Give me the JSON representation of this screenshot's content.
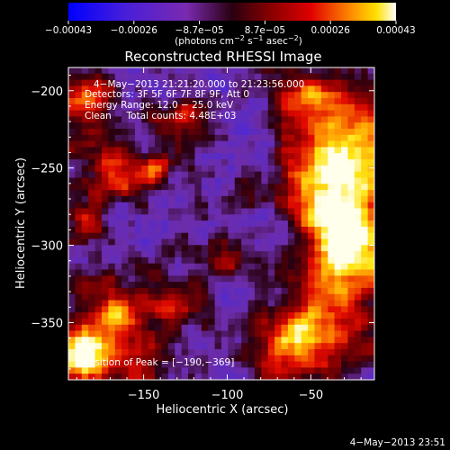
{
  "chart_data": {
    "type": "heatmap",
    "title": "Reconstructed RHESSI Image",
    "xlabel": "Heliocentric X (arcsec)",
    "ylabel": "Heliocentric Y (arcsec)",
    "xlim": [
      -195,
      -12
    ],
    "ylim": [
      -387,
      -185
    ],
    "xticks": [
      -150,
      -100,
      -50
    ],
    "xtick_labels": [
      "−150",
      "−100",
      "−50"
    ],
    "yticks": [
      -200,
      -250,
      -300,
      -350
    ],
    "ytick_labels": [
      "−200",
      "−250",
      "−300",
      "−350"
    ],
    "colorbar": {
      "range": [
        -0.00043,
        0.00043
      ],
      "tick_labels": [
        "−0.00043",
        "−0.00026",
        "−8.7e−05",
        "8.7e−05",
        "0.00026",
        "0.00043"
      ],
      "unit_prefix": "(photons cm",
      "unit_exp1": "−2",
      "unit_mid": " s",
      "unit_exp2": "−1",
      "unit_mid2": " asec",
      "unit_exp3": "−2",
      "unit_suffix": ")"
    },
    "annotations": {
      "time_range": "4−May−2013 21:21:20.000 to 21:23:56.000",
      "detectors": "Detectors: 3F 5F 6F 7F 8F 9F, Att 0",
      "energy": "Energy Range: 12.0 − 25.0 keV",
      "method": "Clean     Total counts: 4.48E+03",
      "peak": "Position of Peak = [−190,−369]"
    },
    "peak_position": [
      -190,
      -369
    ],
    "grid_size": [
      46,
      51
    ]
  },
  "footer": {
    "timestamp": "4−May−2013 23:51"
  }
}
